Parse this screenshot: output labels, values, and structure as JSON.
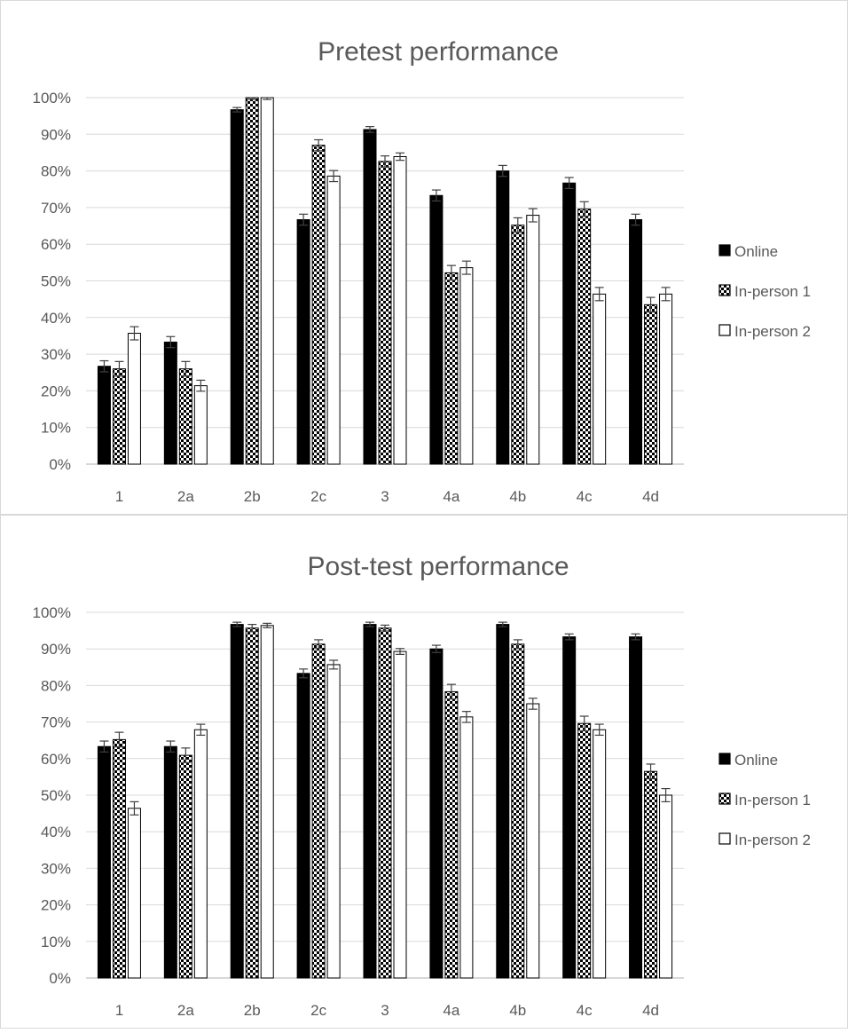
{
  "chart_data": [
    {
      "type": "bar",
      "title": "Pretest performance",
      "categories": [
        "1",
        "2a",
        "2b",
        "2c",
        "3",
        "4a",
        "4b",
        "4c",
        "4d"
      ],
      "series": [
        {
          "name": "Online",
          "values": [
            26.7,
            33.3,
            96.7,
            66.7,
            91.3,
            73.3,
            80.0,
            76.7,
            66.7
          ],
          "errors": [
            1.5,
            1.5,
            0.6,
            1.5,
            0.8,
            1.5,
            1.5,
            1.5,
            1.5
          ]
        },
        {
          "name": "In-person 1",
          "values": [
            26.0,
            26.0,
            100.0,
            87.0,
            82.6,
            52.2,
            65.2,
            69.6,
            43.5
          ],
          "errors": [
            2.0,
            2.0,
            0.5,
            1.5,
            1.5,
            2.0,
            2.0,
            2.0,
            2.0
          ]
        },
        {
          "name": "In-person 2",
          "values": [
            35.7,
            21.4,
            100.0,
            78.6,
            83.9,
            53.6,
            67.9,
            46.4,
            46.4
          ],
          "errors": [
            1.8,
            1.5,
            0.5,
            1.5,
            1.0,
            1.8,
            1.8,
            1.8,
            1.8
          ]
        }
      ],
      "yticks": [
        "0%",
        "10%",
        "20%",
        "30%",
        "40%",
        "50%",
        "60%",
        "70%",
        "80%",
        "90%",
        "100%"
      ],
      "ylim": [
        0,
        100
      ],
      "grid": true,
      "legend_position": "right"
    },
    {
      "type": "bar",
      "title": "Post-test performance",
      "categories": [
        "1",
        "2a",
        "2b",
        "2c",
        "3",
        "4a",
        "4b",
        "4c",
        "4d"
      ],
      "series": [
        {
          "name": "Online",
          "values": [
            63.3,
            63.3,
            96.7,
            83.3,
            96.7,
            90.0,
            96.7,
            93.3,
            93.3
          ],
          "errors": [
            1.5,
            1.5,
            0.6,
            1.2,
            0.6,
            1.0,
            0.6,
            0.8,
            0.8
          ]
        },
        {
          "name": "In-person 1",
          "values": [
            65.2,
            60.9,
            95.7,
            91.3,
            95.7,
            78.3,
            91.3,
            69.6,
            56.5
          ],
          "errors": [
            2.0,
            2.0,
            1.0,
            1.2,
            0.8,
            2.0,
            1.2,
            2.0,
            2.0
          ]
        },
        {
          "name": "In-person 2",
          "values": [
            46.4,
            67.9,
            96.4,
            85.7,
            89.3,
            71.4,
            75.0,
            67.9,
            50.0
          ],
          "errors": [
            1.8,
            1.5,
            0.6,
            1.2,
            0.8,
            1.5,
            1.5,
            1.5,
            1.8
          ]
        }
      ],
      "yticks": [
        "0%",
        "10%",
        "20%",
        "30%",
        "40%",
        "50%",
        "60%",
        "70%",
        "80%",
        "90%",
        "100%"
      ],
      "ylim": [
        0,
        100
      ],
      "grid": true,
      "legend_position": "right"
    }
  ]
}
